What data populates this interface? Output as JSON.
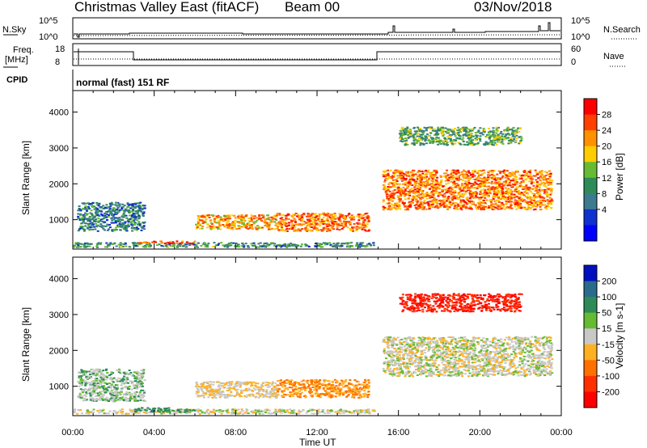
{
  "header": {
    "title": "Christmas Valley East (fitACF)",
    "beam": "Beam 00",
    "date": "03/Nov/2018"
  },
  "sky_panel": {
    "left_label": "N.Sky",
    "right_label": "N.Search",
    "left_ticks": [
      "10^5",
      "10^0"
    ],
    "right_ticks": [
      "10^5",
      "10^0"
    ]
  },
  "freq_panel": {
    "left_label_line1": "Freq.",
    "left_label_line2": "[MHz]",
    "right_label": "Nave",
    "left_ticks": [
      "18",
      "8"
    ],
    "right_ticks": [
      "60",
      "0"
    ]
  },
  "cpid": {
    "label": "CPID",
    "mode": "normal (fast) 151 RF"
  },
  "x_axis": {
    "label": "Time UT",
    "ticks": [
      "00:00",
      "04:00",
      "08:00",
      "12:00",
      "16:00",
      "20:00",
      "00:00"
    ]
  },
  "chart_data": [
    {
      "type": "heatmap",
      "title": "",
      "xlabel": "Time UT",
      "ylabel": "Slant Range [km]",
      "x_range_hours": [
        0,
        24
      ],
      "y_range_km": [
        180,
        4600
      ],
      "y_ticks": [
        "1000",
        "2000",
        "3000",
        "4000"
      ],
      "colorbar_label": "Power [dB]",
      "colorbar_ticks": [
        "28",
        "24",
        "20",
        "16",
        "12",
        "8",
        "4"
      ],
      "colorbar_colors": [
        "#ff0000",
        "#ff4000",
        "#ff9000",
        "#ffcc00",
        "#66bb33",
        "#2e8b57",
        "#3c7a90",
        "#1030d0",
        "#0000ff"
      ],
      "regions": [
        {
          "t": [
            0,
            14.8
          ],
          "r": [
            250,
            380
          ],
          "level": "mixed-low"
        },
        {
          "t": [
            0.2,
            3.5
          ],
          "r": [
            700,
            1500
          ],
          "level": 8
        },
        {
          "t": [
            3,
            6
          ],
          "r": [
            350,
            420
          ],
          "level": 24
        },
        {
          "t": [
            6,
            10
          ],
          "r": [
            750,
            1150
          ],
          "level": 20
        },
        {
          "t": [
            10,
            14.5
          ],
          "r": [
            700,
            1200
          ],
          "level": 22
        },
        {
          "t": [
            15.2,
            23.5
          ],
          "r": [
            1300,
            2400
          ],
          "level": 22
        },
        {
          "t": [
            16,
            22
          ],
          "r": [
            3100,
            3600
          ],
          "level": 12
        }
      ]
    },
    {
      "type": "heatmap",
      "title": "",
      "xlabel": "Time UT",
      "ylabel": "Slant Range [km]",
      "x_range_hours": [
        0,
        24
      ],
      "y_range_km": [
        180,
        4600
      ],
      "y_ticks": [
        "1000",
        "2000",
        "3000",
        "4000"
      ],
      "colorbar_label": "Velocity [m s-1]",
      "colorbar_ticks": [
        "200",
        "100",
        "50",
        "15",
        "-15",
        "-50",
        "-100",
        "-200"
      ],
      "colorbar_colors": [
        "#0010c0",
        "#2a6a8a",
        "#2e8b57",
        "#66bb33",
        "#c8c8c8",
        "#ffb020",
        "#ff7000",
        "#ff3000",
        "#ff0000"
      ],
      "regions": [
        {
          "t": [
            0,
            14.8
          ],
          "r": [
            250,
            380
          ],
          "velocity": "near-zero"
        },
        {
          "t": [
            0.2,
            3.5
          ],
          "r": [
            600,
            1500
          ],
          "velocity": 15
        },
        {
          "t": [
            3,
            6
          ],
          "r": [
            300,
            420
          ],
          "velocity": 50
        },
        {
          "t": [
            6,
            10
          ],
          "r": [
            700,
            1150
          ],
          "velocity": -15
        },
        {
          "t": [
            10,
            14.5
          ],
          "r": [
            700,
            1200
          ],
          "velocity": -50
        },
        {
          "t": [
            15.2,
            23.5
          ],
          "r": [
            1300,
            2400
          ],
          "velocity": 0
        },
        {
          "t": [
            16,
            22
          ],
          "r": [
            3100,
            3600
          ],
          "velocity": -150
        }
      ]
    }
  ]
}
